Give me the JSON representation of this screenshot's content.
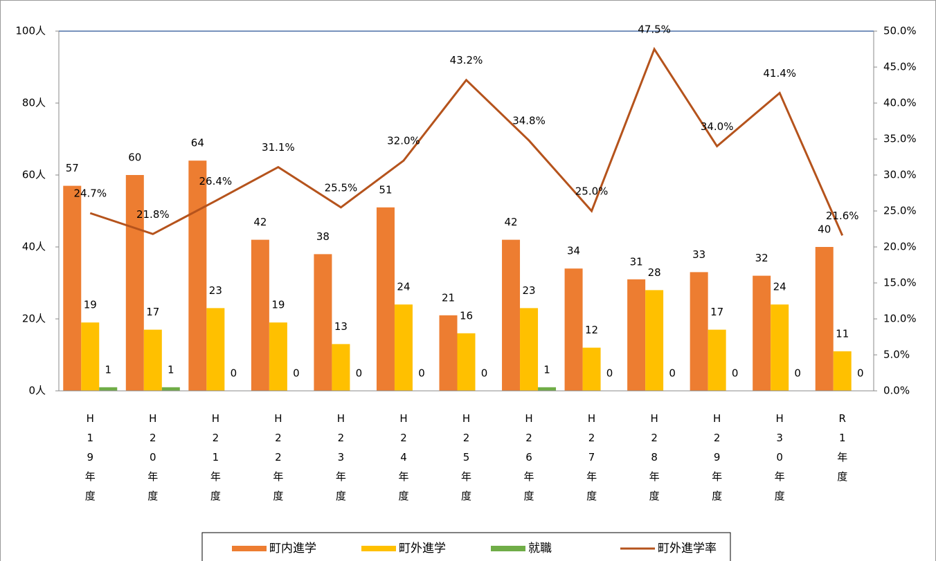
{
  "chart_data": {
    "type": "bar-line",
    "categories": [
      "H19年度",
      "H20年度",
      "H21年度",
      "H22年度",
      "H23年度",
      "H24年度",
      "H25年度",
      "H26年度",
      "H27年度",
      "H28年度",
      "H29年度",
      "H30年度",
      "R1年度"
    ],
    "series": [
      {
        "name": "町内進学",
        "type": "bar",
        "color": "#ed7d31",
        "values": [
          57,
          60,
          64,
          42,
          38,
          51,
          21,
          42,
          34,
          31,
          33,
          32,
          40
        ]
      },
      {
        "name": "町外進学",
        "type": "bar",
        "color": "#ffc000",
        "values": [
          19,
          17,
          23,
          19,
          13,
          24,
          16,
          23,
          12,
          28,
          17,
          24,
          11
        ]
      },
      {
        "name": "就職",
        "type": "bar",
        "color": "#70ad47",
        "values": [
          1,
          1,
          0,
          0,
          0,
          0,
          0,
          1,
          0,
          0,
          0,
          0,
          0
        ]
      },
      {
        "name": "町外進学率",
        "type": "line",
        "axis": "y2",
        "color": "#b5531c",
        "values": [
          24.7,
          21.8,
          26.4,
          31.1,
          25.5,
          32.0,
          43.2,
          34.8,
          25.0,
          47.5,
          34.0,
          41.4,
          21.6
        ],
        "value_labels": [
          "24.7%",
          "21.8%",
          "26.4%",
          "31.1%",
          "25.5%",
          "32.0%",
          "43.2%",
          "34.8%",
          "25.0%",
          "47.5%",
          "34.0%",
          "41.4%",
          "21.6%"
        ]
      }
    ],
    "ylim": [
      0,
      100
    ],
    "yticks": [
      {
        "value": 0,
        "label": "0人"
      },
      {
        "value": 20,
        "label": "20人"
      },
      {
        "value": 40,
        "label": "40人"
      },
      {
        "value": 60,
        "label": "60人"
      },
      {
        "value": 80,
        "label": "80人"
      },
      {
        "value": 100,
        "label": "100人"
      }
    ],
    "y2lim": [
      0,
      50
    ],
    "y2ticks": [
      {
        "value": 0,
        "label": "0.0%"
      },
      {
        "value": 5,
        "label": "5.0%"
      },
      {
        "value": 10,
        "label": "10.0%"
      },
      {
        "value": 15,
        "label": "15.0%"
      },
      {
        "value": 20,
        "label": "20.0%"
      },
      {
        "value": 25,
        "label": "25.0%"
      },
      {
        "value": 30,
        "label": "30.0%"
      },
      {
        "value": 35,
        "label": "35.0%"
      },
      {
        "value": 40,
        "label": "40.0%"
      },
      {
        "value": 45,
        "label": "45.0%"
      },
      {
        "value": 50,
        "label": "50.0%"
      }
    ],
    "grid": false,
    "legend": "bottom"
  }
}
